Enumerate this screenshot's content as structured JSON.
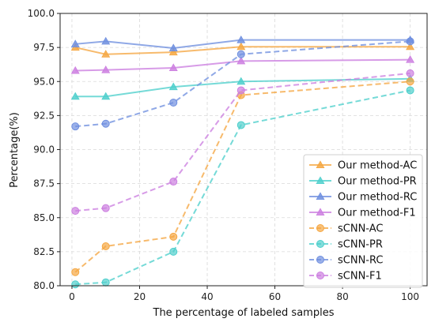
{
  "chart_data": {
    "type": "line",
    "title": "",
    "xlabel": "The percentage of labeled samples",
    "ylabel": "Percentage(%)",
    "xlim": [
      -3.5,
      105
    ],
    "ylim": [
      80.0,
      100.0
    ],
    "x_ticks": [
      0,
      20,
      40,
      60,
      80,
      100
    ],
    "y_ticks": [
      80.0,
      82.5,
      85.0,
      87.5,
      90.0,
      92.5,
      95.0,
      97.5,
      100.0
    ],
    "grid": true,
    "legend_position": "lower-right",
    "x": [
      1,
      10,
      30,
      50,
      100
    ],
    "series": [
      {
        "name": "Our method-AC",
        "color": "#f5a742",
        "marker": "triangle",
        "dash": "solid",
        "values": [
          97.5,
          97.0,
          97.15,
          97.55,
          97.55
        ]
      },
      {
        "name": "Our method-PR",
        "color": "#4ecfcc",
        "marker": "triangle",
        "dash": "solid",
        "values": [
          93.9,
          93.9,
          94.6,
          95.0,
          95.2
        ]
      },
      {
        "name": "Our method-RC",
        "color": "#6f8fdf",
        "marker": "triangle",
        "dash": "solid",
        "values": [
          97.75,
          97.95,
          97.45,
          98.05,
          98.05
        ]
      },
      {
        "name": "Our method-F1",
        "color": "#cc7fe0",
        "marker": "triangle",
        "dash": "solid",
        "values": [
          95.8,
          95.85,
          96.0,
          96.5,
          96.6
        ]
      },
      {
        "name": "sCNN-AC",
        "color": "#f5a742",
        "marker": "circle",
        "dash": "dashed",
        "values": [
          81.0,
          82.9,
          83.6,
          94.0,
          95.0
        ]
      },
      {
        "name": "sCNN-PR",
        "color": "#4ecfcc",
        "marker": "circle",
        "dash": "dashed",
        "values": [
          80.1,
          80.25,
          82.5,
          91.8,
          94.35
        ]
      },
      {
        "name": "sCNN-RC",
        "color": "#6f8fdf",
        "marker": "circle",
        "dash": "dashed",
        "values": [
          91.7,
          91.9,
          93.45,
          97.0,
          97.95
        ]
      },
      {
        "name": "sCNN-F1",
        "color": "#cc7fe0",
        "marker": "circle",
        "dash": "dashed",
        "values": [
          85.5,
          85.7,
          87.65,
          94.35,
          95.6
        ]
      }
    ]
  }
}
